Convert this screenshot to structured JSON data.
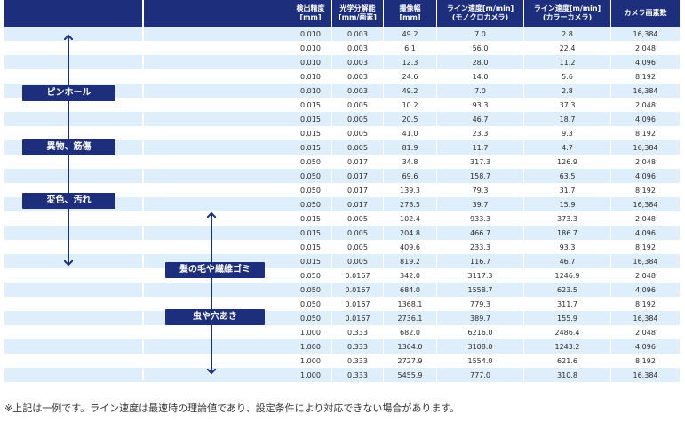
{
  "table": {
    "headers": [
      "検出精度\n[mm]",
      "光学分解能\n[mm/画素]",
      "撮像幅\n[mm]",
      "ライン速度[m/min]\n(モノクロカメラ)",
      "ライン速度[m/min]\n(カラーカメラ)",
      "カメラ画素数"
    ],
    "rows": [
      [
        "0.010",
        "0.003",
        "49.2",
        "7.0",
        "2.8",
        "16,384"
      ],
      [
        "0.010",
        "0.003",
        "6.1",
        "56.0",
        "22.4",
        "2,048"
      ],
      [
        "0.010",
        "0.003",
        "12.3",
        "28.0",
        "11.2",
        "4,096"
      ],
      [
        "0.010",
        "0.003",
        "24.6",
        "14.0",
        "5.6",
        "8,192"
      ],
      [
        "0.010",
        "0.003",
        "49.2",
        "7.0",
        "2.8",
        "16,384"
      ],
      [
        "0.015",
        "0.005",
        "10.2",
        "93.3",
        "37.3",
        "2,048"
      ],
      [
        "0.015",
        "0.005",
        "20.5",
        "46.7",
        "18.7",
        "4,096"
      ],
      [
        "0.015",
        "0.005",
        "41.0",
        "23.3",
        "9.3",
        "8,192"
      ],
      [
        "0.015",
        "0.005",
        "81.9",
        "11.7",
        "4.7",
        "16,384"
      ],
      [
        "0.050",
        "0.017",
        "34.8",
        "317.3",
        "126.9",
        "2,048"
      ],
      [
        "0.050",
        "0.017",
        "69.6",
        "158.7",
        "63.5",
        "4,096"
      ],
      [
        "0.050",
        "0.017",
        "139.3",
        "79.3",
        "31.7",
        "8,192"
      ],
      [
        "0.050",
        "0.017",
        "278.5",
        "39.7",
        "15.9",
        "16,384"
      ],
      [
        "0.015",
        "0.005",
        "102.4",
        "933.3",
        "373.3",
        "2,048"
      ],
      [
        "0.015",
        "0.005",
        "204.8",
        "466.7",
        "186.7",
        "4,096"
      ],
      [
        "0.015",
        "0.005",
        "409.6",
        "233.3",
        "93.3",
        "8,192"
      ],
      [
        "0.015",
        "0.005",
        "819.2",
        "116.7",
        "46.7",
        "16,384"
      ],
      [
        "0.050",
        "0.0167",
        "342.0",
        "3117.3",
        "1246.9",
        "2,048"
      ],
      [
        "0.050",
        "0.0167",
        "684.0",
        "1558.7",
        "623.5",
        "4,096"
      ],
      [
        "0.050",
        "0.0167",
        "1368.1",
        "779.3",
        "311.7",
        "8,192"
      ],
      [
        "0.050",
        "0.0167",
        "2736.1",
        "389.7",
        "155.9",
        "16,384"
      ],
      [
        "1.000",
        "0.333",
        "682.0",
        "6216.0",
        "2486.4",
        "2,048"
      ],
      [
        "1.000",
        "0.333",
        "1364.0",
        "3108.0",
        "1243.2",
        "4,096"
      ],
      [
        "1.000",
        "0.333",
        "2727.9",
        "1554.0",
        "621.6",
        "8,192"
      ],
      [
        "1.000",
        "0.333",
        "5455.9",
        "777.0",
        "310.8",
        "16,384"
      ]
    ]
  },
  "labels": {
    "pinhole": "ピンホール",
    "foreign": "異物、筋傷",
    "discolor": "変色、汚れ",
    "hair": "髪の毛や繊維ゴミ",
    "insect": "虫や穴あき"
  },
  "footnote": "※上記は一例です。ライン速度は最速時の理論値であり、設定条件により対応できない場合があります。",
  "colors": {
    "header_bg": "#1c2e7c",
    "stripe": "#deeefa",
    "arrow": "#1c2e7c"
  }
}
